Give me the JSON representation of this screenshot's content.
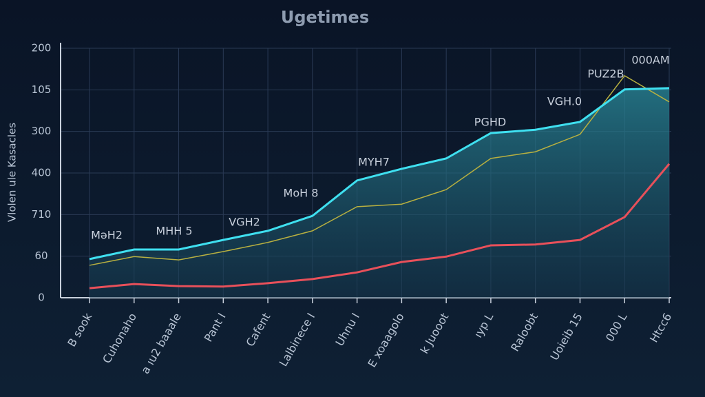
{
  "chart_data": {
    "type": "line",
    "title": "Ugetimes",
    "y_label": "Vlolen ule Kasacles",
    "categories": [
      "B sook",
      "Cuhonaho",
      "a ıu2 baaale",
      "Pant I",
      "Cafent",
      "Lalbinece I",
      "Uhnu I",
      "E xoaagolo",
      "k Juooot",
      "ıyp L",
      "Raloobt",
      "Uoieib 15",
      "000 L",
      "Htcc6"
    ],
    "series": [
      {
        "name": "cyan",
        "color": "#3fe0f0",
        "values": [
          0.93,
          1.16,
          1.16,
          1.39,
          1.61,
          1.97,
          2.82,
          3.1,
          3.35,
          3.96,
          4.04,
          4.23,
          5.01,
          5.04
        ]
      },
      {
        "name": "yellow",
        "color": "#b8b040",
        "values": [
          0.78,
          0.99,
          0.91,
          1.11,
          1.33,
          1.61,
          2.19,
          2.25,
          2.6,
          3.35,
          3.51,
          3.93,
          5.34,
          4.71
        ]
      },
      {
        "name": "red",
        "color": "#e8505a",
        "values": [
          0.23,
          0.33,
          0.28,
          0.27,
          0.35,
          0.45,
          0.61,
          0.86,
          0.99,
          1.26,
          1.28,
          1.39,
          1.94,
          3.22
        ]
      }
    ],
    "annotations": [
      "MəH2",
      "MHH 5",
      "VGH2",
      "MoH 8",
      "MYH7",
      "PGHD",
      "VGH.0",
      "PUZ2B",
      "000AM"
    ],
    "ylim": [
      0,
      6
    ],
    "yticks": [
      {
        "value": 0,
        "label": "0"
      },
      {
        "value": 1,
        "label": "60"
      },
      {
        "value": 2,
        "label": "710"
      },
      {
        "value": 3,
        "label": "400"
      },
      {
        "value": 4,
        "label": "300"
      },
      {
        "value": 5,
        "label": "105"
      },
      {
        "value": 6,
        "label": "200"
      }
    ],
    "grid": true
  }
}
